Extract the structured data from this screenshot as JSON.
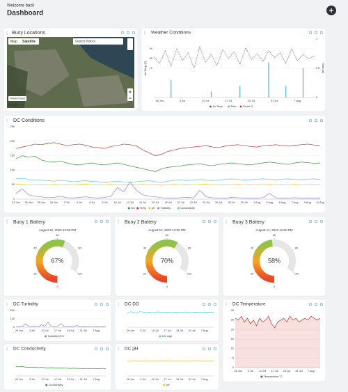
{
  "header": {
    "greeting": "Welcome back",
    "title": "Dashboard"
  },
  "map": {
    "title": "Buoy Locations",
    "tabs": [
      "Map",
      "Satellite"
    ],
    "search": "Search Places",
    "button": "Show Poses",
    "brand": "Google"
  },
  "chart_data": [
    {
      "type": "line",
      "title": "Weather Conditions",
      "ylabel": "Air Temp (F)",
      "y2label": "Rain (in)",
      "categories": [
        null,
        "26 Jun",
        null,
        null,
        null,
        "3 Jul",
        null,
        null,
        null,
        "10 Jul",
        null,
        null,
        null,
        "17 Jul",
        null,
        null,
        null,
        "24 Jul",
        null,
        null,
        null,
        "31 Jul",
        null,
        null,
        null,
        "7 Aug",
        null,
        null,
        null
      ],
      "ylim": [
        40,
        100
      ],
      "yticks": [
        70,
        80,
        90
      ],
      "y2lim": [
        0,
        1
      ],
      "y2ticks": [
        0,
        0.5,
        1
      ],
      "grid": true,
      "series": [
        {
          "name": "Air Temp",
          "color": "#666666",
          "style": "dotted",
          "values": [
            82,
            75,
            88,
            72,
            90,
            78,
            86,
            70,
            92,
            76,
            84,
            73,
            89,
            80,
            87,
            74,
            91,
            79,
            85,
            77,
            88,
            81,
            86,
            75,
            90,
            78,
            84,
            80,
            83
          ]
        },
        {
          "name": "Rain",
          "color": "#4fb6d8",
          "kind": "bar",
          "axis": "y2",
          "values": [
            0,
            0,
            0,
            0.3,
            0,
            0,
            0,
            0,
            0,
            0,
            0.1,
            0,
            0,
            0,
            0,
            0.2,
            0,
            0,
            0,
            0,
            0.6,
            0,
            0,
            0.2,
            0,
            0,
            0.5,
            0,
            0
          ]
        },
        {
          "name": "Series 3",
          "color": "#d9412b",
          "values": [
            null,
            null,
            null,
            null,
            null,
            null,
            null,
            null,
            null,
            null,
            null,
            null,
            null,
            null,
            null,
            null,
            null,
            null,
            null,
            null,
            null,
            null,
            null,
            null,
            null,
            null,
            null,
            null,
            null
          ]
        }
      ]
    },
    {
      "type": "line",
      "title": "DC Conditions",
      "categories": [
        "24 Jun",
        null,
        "26 Jun",
        null,
        "28 Jun",
        null,
        "30 Jun",
        null,
        "2 Jul",
        null,
        "4 Jul",
        null,
        "6 Jul",
        null,
        "8 Jul",
        null,
        "10 Jul",
        null,
        "12 Jul",
        null,
        "14 Jul",
        null,
        "16 Jul",
        null,
        "18 Jul",
        null,
        "20 Jul",
        null,
        "22 Jul",
        null,
        "24 Jul",
        null,
        "26 Jul",
        null,
        "28 Jul",
        null,
        "30 Jul",
        null,
        "1 Aug",
        null,
        "3 Aug",
        null,
        "5 Aug",
        null,
        "7 Aug",
        null,
        "9 Aug",
        null,
        "11 Aug"
      ],
      "ylim": [
        0,
        250
      ],
      "yticks": [
        0,
        50,
        100,
        150,
        200,
        250
      ],
      "grid": true,
      "series": [
        {
          "name": "DO",
          "color": "#2e9a2e",
          "values": [
            140,
            150,
            145,
            148,
            135,
            130,
            128,
            132,
            125,
            120,
            118,
            122,
            125,
            120,
            118,
            122,
            125,
            120,
            115,
            110,
            105,
            100,
            95,
            105,
            110,
            112,
            115,
            118,
            120,
            122,
            118,
            115,
            120,
            122,
            125,
            122,
            120,
            118,
            122,
            125,
            128,
            125,
            122,
            120,
            125,
            128,
            126,
            124,
            125
          ]
        },
        {
          "name": "Temp",
          "color": "#c8321e",
          "values": [
            175,
            180,
            185,
            190,
            188,
            192,
            195,
            190,
            185,
            188,
            190,
            186,
            180,
            178,
            175,
            182,
            185,
            190,
            188,
            184,
            170,
            160,
            150,
            155,
            165,
            170,
            175,
            178,
            180,
            182,
            185,
            180,
            178,
            183,
            186,
            188,
            185,
            182,
            180,
            184,
            186,
            188,
            185,
            183,
            186,
            188,
            190,
            187,
            185
          ]
        },
        {
          "name": "pH",
          "color": "#e8c81e",
          "values": [
            52,
            51,
            50,
            50,
            49,
            50,
            51,
            50,
            49,
            50,
            51,
            52,
            50,
            49,
            50,
            51,
            50,
            50,
            49,
            50,
            51,
            50,
            49,
            48,
            50,
            51,
            50,
            49,
            50,
            51,
            52,
            50,
            50,
            49,
            50,
            51,
            50,
            49,
            50,
            50,
            51,
            50,
            49,
            50,
            51,
            50,
            50,
            49,
            50
          ]
        },
        {
          "name": "Turbidity",
          "color": "#9a7ae0",
          "values": [
            20,
            35,
            15,
            10,
            8,
            5,
            6,
            10,
            5,
            4,
            6,
            8,
            5,
            4,
            6,
            10,
            40,
            25,
            60,
            30,
            15,
            10,
            8,
            5,
            4,
            3,
            5,
            6,
            4,
            30,
            8,
            5,
            4,
            3,
            6,
            5,
            4,
            3,
            4,
            5,
            20,
            4,
            3,
            4,
            5,
            3,
            4,
            3,
            4
          ]
        },
        {
          "name": "Conductivity",
          "color": "#4fc8e0",
          "values": [
            70,
            72,
            68,
            65,
            66,
            64,
            62,
            65,
            63,
            60,
            62,
            64,
            61,
            60,
            58,
            60,
            62,
            59,
            57,
            60,
            62,
            64,
            60,
            58,
            62,
            65,
            66,
            64,
            66,
            68,
            65,
            64,
            66,
            68,
            70,
            68,
            66,
            67,
            69,
            70,
            68,
            67,
            69,
            70,
            68,
            67,
            69,
            70,
            68
          ]
        }
      ]
    },
    {
      "type": "gauge",
      "title": "Buoy 1 Battery",
      "subtitle": "August 12, 2023 12:00 PM",
      "values": [
        67
      ],
      "value_labels": [
        "67%"
      ],
      "ylim": [
        0,
        100
      ],
      "yticks": [
        0,
        20,
        40,
        60,
        80,
        100
      ]
    },
    {
      "type": "gauge",
      "title": "Buoy 2 Battery",
      "subtitle": "August 12, 2023 12:00 PM",
      "values": [
        70
      ],
      "value_labels": [
        "70%"
      ],
      "ylim": [
        0,
        100
      ],
      "yticks": [
        0,
        20,
        40,
        60,
        80,
        100
      ]
    },
    {
      "type": "gauge",
      "title": "Buoy 3 Battery",
      "subtitle": "August 12, 2023 12:00 PM",
      "values": [
        58
      ],
      "value_labels": [
        "58%"
      ],
      "ylim": [
        0,
        100
      ],
      "yticks": [
        0,
        20,
        40,
        60,
        80,
        100
      ]
    },
    {
      "type": "line",
      "title": "DC Turbidity",
      "categories": [
        null,
        "26 Jun",
        null,
        null,
        null,
        "3 Jul",
        null,
        null,
        null,
        "10 Jul",
        null,
        null,
        null,
        "17 Jul",
        null,
        null,
        null,
        "24 Jul",
        null,
        null,
        null,
        "31 Jul",
        null,
        null,
        null,
        "7 Aug",
        null,
        null,
        null
      ],
      "ylim": [
        0,
        200
      ],
      "yticks": [
        0,
        100,
        200
      ],
      "grid": true,
      "series": [
        {
          "name": "Turbidity NTU",
          "color": "#9a7ae0",
          "values": [
            10,
            12,
            8,
            40,
            10,
            9,
            15,
            8,
            30,
            12,
            60,
            10,
            8,
            9,
            45,
            10,
            8,
            12,
            9,
            20,
            8,
            7,
            10,
            8,
            9,
            15,
            8,
            7,
            9
          ]
        }
      ]
    },
    {
      "type": "line",
      "title": "DC DO",
      "categories": [
        null,
        "26 Jun",
        null,
        null,
        null,
        "3 Jul",
        null,
        null,
        null,
        "10 Jul",
        null,
        null,
        null,
        "17 Jul",
        null,
        null,
        null,
        "24 Jul",
        null,
        null,
        null,
        "31 Jul",
        null,
        null,
        null,
        "7 Aug",
        null,
        null,
        null
      ],
      "ylim": [
        0,
        14
      ],
      "grid": true,
      "series": [
        {
          "name": "DO mg/l",
          "color": "#4fc8e0",
          "values": [
            12,
            13,
            12.5,
            12,
            13,
            12.8,
            12.2,
            12.6,
            12.1,
            12.4,
            12.9,
            12.3,
            12.5,
            12.7,
            12.2,
            12.4,
            12.6,
            12.3,
            12.5,
            12.8,
            12.4,
            12.2,
            12.6,
            12.5,
            12.3,
            12.7,
            12.4,
            12.5,
            12.6
          ]
        }
      ]
    },
    {
      "type": "line",
      "title": "DC Temperature",
      "categories": [
        null,
        "26 Jun",
        null,
        null,
        null,
        "3 Jul",
        null,
        null,
        null,
        "10 Jul",
        null,
        null,
        null,
        "17 Jul",
        null,
        null,
        null,
        "24 Jul",
        null,
        null,
        null,
        "31 Jul",
        null,
        null,
        null,
        "7 Aug",
        null,
        null,
        null
      ],
      "ylim": [
        0,
        30
      ],
      "yticks": [
        0,
        5,
        10,
        15,
        20,
        25,
        30
      ],
      "grid": true,
      "series": [
        {
          "name": "Temperature °C",
          "color": "#c8321e",
          "area": true,
          "values": [
            26,
            25,
            27,
            24,
            26,
            23,
            25,
            22,
            26,
            24,
            25,
            27,
            23,
            21,
            24,
            25,
            26,
            24,
            27,
            25,
            26,
            24,
            25,
            26,
            25,
            27,
            26,
            25,
            26
          ]
        }
      ]
    },
    {
      "type": "line",
      "title": "DC Conductivity",
      "categories": [
        null,
        "26 Jun",
        null,
        null,
        null,
        "3 Jul",
        null,
        null,
        null,
        "10 Jul",
        null,
        null,
        null,
        "17 Jul",
        null,
        null,
        null,
        "24 Jul",
        null,
        null,
        null,
        "31 Jul",
        null,
        null,
        null,
        "7 Aug",
        null,
        null,
        null
      ],
      "ylim": [
        0,
        80
      ],
      "grid": true,
      "series": [
        {
          "name": "Conductivity",
          "color": "#2e9a2e",
          "values": [
            36,
            35,
            36,
            34,
            33,
            34,
            33,
            32,
            33,
            32,
            31,
            32,
            31,
            30,
            31,
            30,
            30,
            29,
            30,
            29,
            29,
            28,
            29,
            28,
            29,
            28,
            28,
            29,
            28
          ]
        }
      ]
    },
    {
      "type": "line",
      "title": "DC pH",
      "categories": [
        null,
        "26 Jun",
        null,
        null,
        null,
        "3 Jul",
        null,
        null,
        null,
        "10 Jul",
        null,
        null,
        null,
        "17 Jul",
        null,
        null,
        null,
        "24 Jul",
        null,
        null,
        null,
        "31 Jul",
        null,
        null,
        null,
        "7 Aug",
        null,
        null,
        null
      ],
      "ylim": [
        0,
        14
      ],
      "grid": true,
      "series": [
        {
          "name": "pH",
          "color": "#e8c81e",
          "values": [
            10.2,
            10.1,
            10.3,
            10.2,
            10.1,
            10.2,
            10.3,
            10.1,
            10.2,
            10.2,
            10.1,
            10.3,
            10.2,
            10.1,
            10.2,
            10.2,
            10.3,
            10.1,
            10.2,
            10.2,
            10.1,
            10.2,
            10.3,
            10.2,
            10.1,
            10.2,
            10.2,
            10.1,
            10.2
          ]
        }
      ]
    }
  ]
}
